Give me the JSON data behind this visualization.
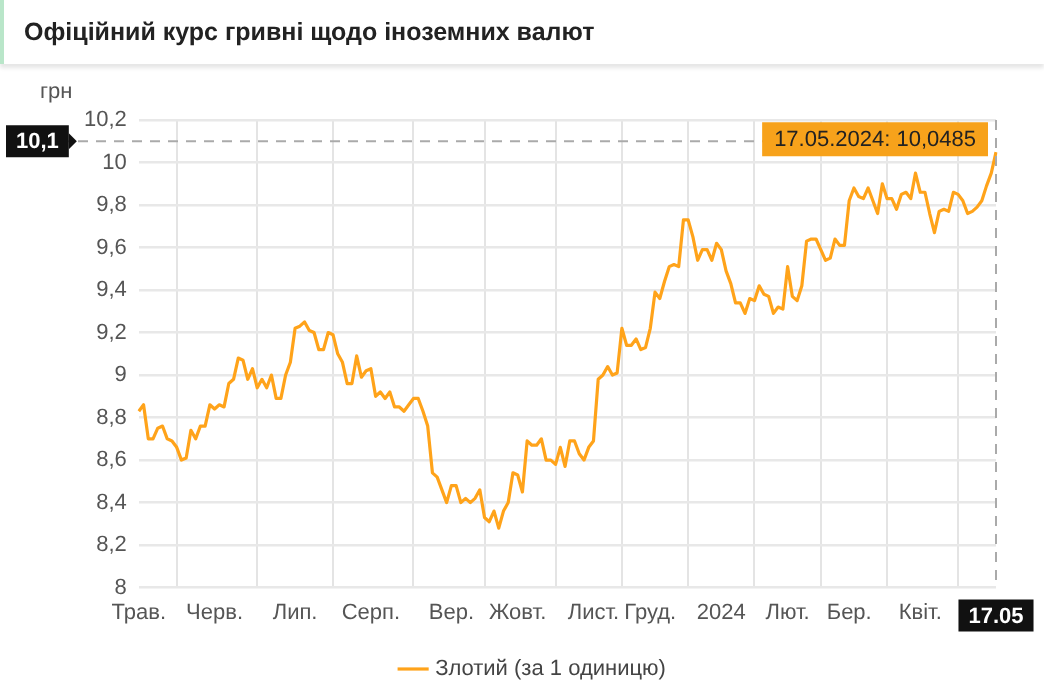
{
  "chart_data": {
    "type": "line",
    "title": "Офіційний курс гривні щодо іноземних валют",
    "ylabel": "грн",
    "categories": [
      "Трав.",
      null,
      null,
      null,
      null,
      null,
      null,
      null,
      null,
      null,
      null,
      null,
      null,
      null,
      null,
      null,
      "Черв.",
      null,
      null,
      null,
      null,
      null,
      null,
      null,
      null,
      null,
      null,
      null,
      null,
      null,
      null,
      null,
      null,
      "Лип.",
      null,
      null,
      null,
      null,
      null,
      null,
      null,
      null,
      null,
      null,
      null,
      null,
      null,
      null,
      null,
      "Серп.",
      null,
      null,
      null,
      null,
      null,
      null,
      null,
      null,
      null,
      null,
      null,
      null,
      null,
      null,
      null,
      null,
      "Вер.",
      null,
      null,
      null,
      null,
      null,
      null,
      null,
      null,
      null,
      null,
      null,
      null,
      null,
      "Жовт.",
      null,
      null,
      null,
      null,
      null,
      null,
      null,
      null,
      null,
      null,
      null,
      null,
      null,
      null,
      null,
      "Лист.",
      null,
      null,
      null,
      null,
      null,
      null,
      null,
      null,
      null,
      null,
      null,
      "Груд.",
      null,
      null,
      null,
      null,
      null,
      null,
      null,
      null,
      null,
      null,
      null,
      null,
      null,
      null,
      "2024",
      null,
      null,
      null,
      null,
      null,
      null,
      null,
      null,
      null,
      null,
      null,
      null,
      null,
      "Лют.",
      null,
      null,
      null,
      null,
      null,
      null,
      null,
      null,
      null,
      null,
      null,
      null,
      "Бер.",
      null,
      null,
      null,
      null,
      null,
      null,
      null,
      null,
      null,
      null,
      null,
      null,
      null,
      null,
      "Квіт.",
      null,
      null,
      null,
      null,
      null,
      null,
      null,
      null,
      null,
      null,
      null,
      null,
      null,
      null,
      null,
      "17.05"
    ],
    "series": [
      {
        "name": "Злотий (за 1 одиницю)",
        "color": "#ffa31a",
        "values": [
          8.83,
          8.86,
          8.7,
          8.7,
          8.75,
          8.76,
          8.7,
          8.69,
          8.66,
          8.6,
          8.61,
          8.74,
          8.7,
          8.76,
          8.76,
          8.86,
          8.84,
          8.86,
          8.85,
          8.96,
          8.98,
          9.08,
          9.07,
          8.98,
          9.03,
          8.94,
          8.98,
          8.94,
          9.0,
          8.89,
          8.89,
          9.0,
          9.06,
          9.22,
          9.23,
          9.25,
          9.21,
          9.2,
          9.12,
          9.12,
          9.2,
          9.19,
          9.1,
          9.06,
          8.96,
          8.96,
          9.09,
          8.99,
          9.02,
          9.03,
          8.9,
          8.92,
          8.89,
          8.92,
          8.85,
          8.85,
          8.83,
          8.86,
          8.89,
          8.89,
          8.83,
          8.76,
          8.54,
          8.52,
          8.46,
          8.4,
          8.48,
          8.48,
          8.4,
          8.42,
          8.4,
          8.42,
          8.46,
          8.33,
          8.31,
          8.36,
          8.28,
          8.36,
          8.4,
          8.54,
          8.53,
          8.45,
          8.69,
          8.67,
          8.67,
          8.7,
          8.6,
          8.6,
          8.58,
          8.66,
          8.57,
          8.69,
          8.69,
          8.63,
          8.6,
          8.66,
          8.69,
          8.98,
          9.0,
          9.04,
          9.0,
          9.01,
          9.22,
          9.14,
          9.14,
          9.17,
          9.12,
          9.13,
          9.22,
          9.39,
          9.36,
          9.44,
          9.51,
          9.52,
          9.51,
          9.73,
          9.73,
          9.65,
          9.54,
          9.59,
          9.59,
          9.54,
          9.62,
          9.59,
          9.49,
          9.43,
          9.34,
          9.34,
          9.29,
          9.36,
          9.35,
          9.42,
          9.38,
          9.37,
          9.29,
          9.32,
          9.31,
          9.51,
          9.37,
          9.35,
          9.42,
          9.63,
          9.64,
          9.64,
          9.59,
          9.54,
          9.55,
          9.64,
          9.61,
          9.61,
          9.82,
          9.88,
          9.84,
          9.83,
          9.88,
          9.82,
          9.76,
          9.9,
          9.83,
          9.83,
          9.78,
          9.85,
          9.86,
          9.83,
          9.95,
          9.86,
          9.86,
          9.76,
          9.67,
          9.77,
          9.78,
          9.77,
          9.86,
          9.85,
          9.82,
          9.76,
          9.77,
          9.79,
          9.82,
          9.89,
          9.95,
          10.0485
        ]
      }
    ],
    "ylim": [
      8,
      10.2
    ],
    "yticks": [
      8,
      {
        "value": 8.2,
        "label": "8,2"
      },
      {
        "value": 8.4,
        "label": "8,4"
      },
      {
        "value": 8.6,
        "label": "8,6"
      },
      {
        "value": 8.8,
        "label": "8,8"
      },
      9,
      {
        "value": 9.2,
        "label": "9,2"
      },
      {
        "value": 9.4,
        "label": "9,4"
      },
      {
        "value": 9.6,
        "label": "9,6"
      },
      {
        "value": 9.8,
        "label": "9,8"
      },
      10,
      {
        "value": 10.2,
        "label": "10,2"
      }
    ],
    "grid": true,
    "legend": "bottom",
    "ref_lines": [
      {
        "axis": "y",
        "value": 10.1,
        "label": "10,1",
        "line_style": "dashed",
        "color": "#aaaaaa"
      },
      {
        "axis": "x",
        "value": "17.05",
        "line_style": "dashed",
        "color": "#aaaaaa"
      }
    ],
    "annotations": [
      {
        "text": "17.05.2024: 10,0485",
        "x": "17.05",
        "y": 10.0485
      }
    ]
  }
}
